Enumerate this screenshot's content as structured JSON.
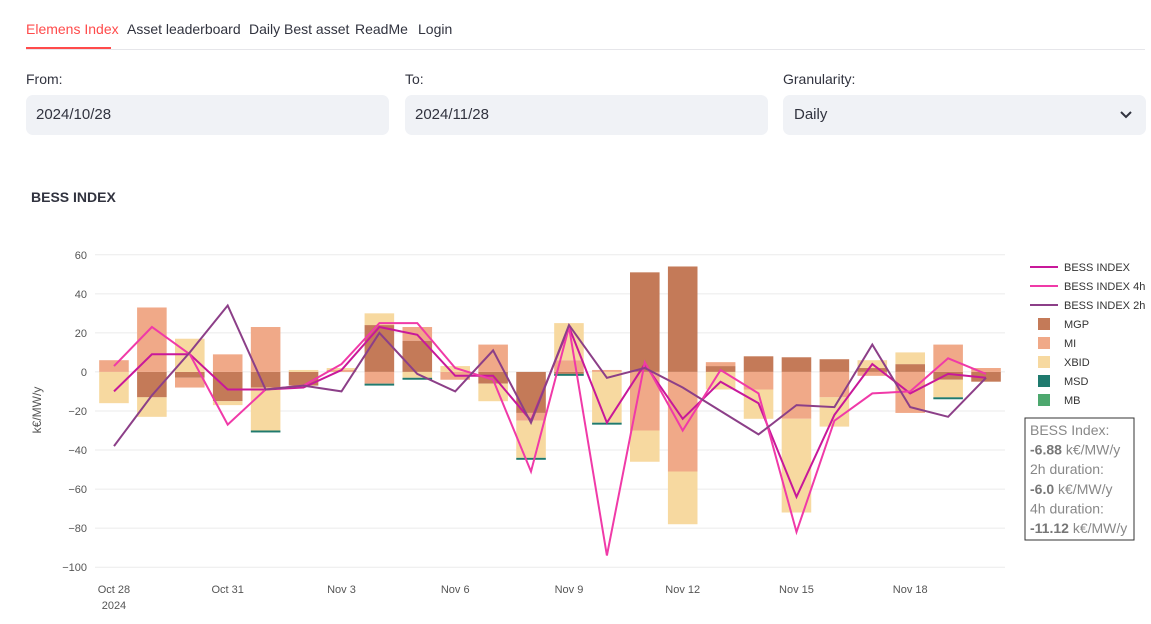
{
  "tabs": {
    "items": [
      "Elemens Index",
      "Asset leaderboard",
      "Daily Best asset",
      "ReadMe",
      "Login"
    ],
    "active": 0
  },
  "filters": [
    {
      "label": "From:",
      "value": "2024/10/28"
    },
    {
      "label": "To:",
      "value": "2024/11/28"
    },
    {
      "label": "Granularity:",
      "value": "Daily"
    }
  ],
  "chart_data": {
    "type": "bar",
    "barmode": "relative",
    "title": "BESS INDEX",
    "y_label": "k€/MW/y",
    "x": [
      "2024-10-28",
      "2024-10-29",
      "2024-10-30",
      "2024-10-31",
      "2024-11-01",
      "2024-11-02",
      "2024-11-03",
      "2024-11-04",
      "2024-11-05",
      "2024-11-06",
      "2024-11-07",
      "2024-11-08",
      "2024-11-09",
      "2024-11-10",
      "2024-11-11",
      "2024-11-12",
      "2024-11-13",
      "2024-11-14",
      "2024-11-15",
      "2024-11-16",
      "2024-11-17",
      "2024-11-18",
      "2024-11-19",
      "2024-11-20"
    ],
    "xlim": [
      "2024-10-27T12:00:00Z",
      "2024-11-20T12:00:00Z"
    ],
    "xticks": [
      {
        "value": "2024-10-28",
        "label": "Oct 28"
      },
      {
        "value": "2024-10-31",
        "label": "Oct 31"
      },
      {
        "value": "2024-11-03",
        "label": "Nov 3"
      },
      {
        "value": "2024-11-06",
        "label": "Nov 6"
      },
      {
        "value": "2024-11-09",
        "label": "Nov 9"
      },
      {
        "value": "2024-11-12",
        "label": "Nov 12"
      },
      {
        "value": "2024-11-15",
        "label": "Nov 15"
      },
      {
        "value": "2024-11-18",
        "label": "Nov 18"
      }
    ],
    "xtick_year": "2024",
    "ylim": [
      -104,
      65
    ],
    "yticks": [
      60,
      40,
      20,
      0,
      {
        "value": -20,
        "label": "−20"
      },
      {
        "value": -40,
        "label": "−40"
      },
      {
        "value": -60,
        "label": "−60"
      },
      {
        "value": -80,
        "label": "−80"
      },
      {
        "value": -100,
        "label": "−100"
      }
    ],
    "grid": true,
    "legend": "right",
    "series": [
      {
        "name": "BESS INDEX",
        "type": "line",
        "color": "#c8189a",
        "values": [
          -10,
          9,
          9,
          -9,
          -9,
          -8,
          1,
          23,
          19,
          -2,
          -2,
          -25,
          23,
          -26,
          4,
          -24,
          -5,
          -16,
          -64,
          -22,
          4,
          -11,
          -1,
          -3
        ]
      },
      {
        "name": "BESS INDEX 4h",
        "type": "line",
        "color": "#f03aa8",
        "values": [
          3,
          23,
          9,
          -27,
          -9,
          -7,
          4,
          25,
          25,
          2,
          -4,
          -51,
          23,
          -94,
          5,
          -30,
          1,
          -11,
          -82,
          -25,
          -11,
          -10,
          7,
          -1
        ]
      },
      {
        "name": "BESS INDEX 2h",
        "type": "line",
        "color": "#8c3f88",
        "values": [
          -38,
          -12,
          10,
          34,
          -9,
          -7,
          -10,
          20,
          -1,
          -10,
          11,
          -26,
          24,
          -3,
          2,
          -8,
          -20,
          -32,
          -17,
          -18,
          14,
          -18,
          -23,
          -3
        ]
      },
      {
        "name": "MGP",
        "type": "bar",
        "color": "#c47a58",
        "values": [
          0,
          -13,
          -3,
          -15,
          -8,
          -7,
          0,
          24,
          16,
          0,
          -6,
          -21,
          -1,
          0,
          51,
          54,
          3,
          8,
          7.5,
          6.5,
          2,
          4,
          -4,
          -5
        ]
      },
      {
        "name": "MI",
        "type": "bar",
        "color": "#f0a988",
        "values": [
          6,
          33,
          -5,
          9,
          23,
          0,
          1,
          -6,
          7,
          -4,
          14,
          -4,
          6,
          1,
          -30,
          -51,
          2,
          -9,
          -24,
          -13,
          -2,
          -21,
          14,
          2
        ]
      },
      {
        "name": "XBID",
        "type": "bar",
        "color": "#f7d9a0",
        "values": [
          -16,
          -10,
          17,
          -2,
          -22,
          1,
          1,
          6,
          -3,
          3,
          -9,
          -19,
          19,
          -26,
          -16,
          -27,
          -9,
          -15,
          -48,
          -15,
          4,
          6,
          -9,
          0
        ]
      },
      {
        "name": "MSD",
        "type": "bar",
        "color": "#1f7a6e",
        "values": [
          0,
          0,
          0,
          0,
          -1,
          0,
          0,
          -1,
          -1,
          0,
          0,
          -1,
          -1,
          -1,
          0,
          0,
          0,
          0,
          0,
          0,
          0,
          0,
          -1,
          0
        ]
      },
      {
        "name": "MB",
        "type": "bar",
        "color": "#4da86e",
        "values": [
          0,
          0,
          0,
          0,
          0,
          0,
          0,
          0,
          0,
          0,
          0,
          0,
          0,
          0,
          0,
          0,
          0,
          0,
          0,
          0,
          0,
          0,
          0,
          0
        ]
      }
    ],
    "annotation": {
      "lines": [
        {
          "text": "BESS Index:"
        },
        {
          "value": "-6.88",
          "unit": "k€/MW/y"
        },
        {
          "text": "2h duration:"
        },
        {
          "value": "-6.0",
          "unit": "k€/MW/y"
        },
        {
          "text": "4h duration:"
        },
        {
          "value": "-11.12",
          "unit": "k€/MW/y"
        }
      ]
    }
  }
}
